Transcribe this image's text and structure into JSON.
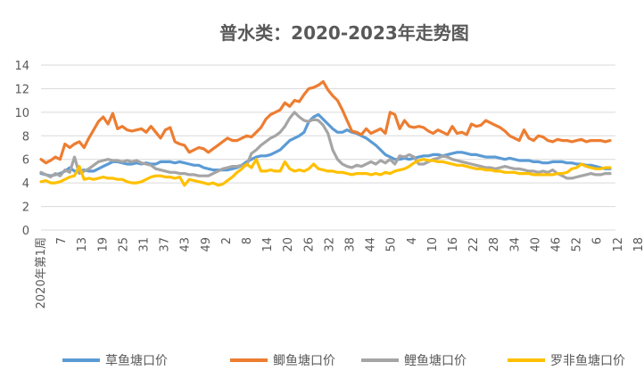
{
  "chart_data": {
    "type": "line",
    "title": "普水类：2020-2023年走势图",
    "xlabel": "",
    "ylabel": "",
    "ylim": [
      0,
      14
    ],
    "yticks": [
      0,
      2,
      4,
      6,
      8,
      10,
      12,
      14
    ],
    "grid": true,
    "legend_position": "bottom",
    "x_tick_labels": [
      "2020年第1周",
      "7",
      "13",
      "19",
      "25",
      "31",
      "37",
      "43",
      "49",
      "2",
      "8",
      "14",
      "20",
      "26",
      "32",
      "38",
      "44",
      "50",
      "4",
      "10",
      "16",
      "22",
      "28",
      "34",
      "40",
      "46",
      "52",
      "6",
      "12",
      "18"
    ],
    "series": [
      {
        "name": "草鱼塘口价",
        "color": "#5b9bd5",
        "values": [
          4.8,
          4.7,
          4.6,
          4.7,
          4.8,
          5.0,
          5.3,
          5.0,
          5.0,
          5.1,
          5.0,
          5.0,
          5.2,
          5.4,
          5.6,
          5.8,
          5.8,
          5.7,
          5.6,
          5.6,
          5.7,
          5.6,
          5.7,
          5.6,
          5.6,
          5.8,
          5.8,
          5.8,
          5.7,
          5.8,
          5.7,
          5.6,
          5.5,
          5.5,
          5.3,
          5.2,
          5.1,
          5.1,
          5.1,
          5.1,
          5.2,
          5.3,
          5.5,
          5.8,
          6.0,
          6.2,
          6.3,
          6.3,
          6.4,
          6.6,
          6.8,
          7.2,
          7.6,
          7.8,
          8.0,
          8.3,
          9.2,
          9.6,
          9.8,
          9.4,
          9.0,
          8.6,
          8.3,
          8.3,
          8.5,
          8.3,
          8.2,
          8.0,
          7.8,
          7.5,
          7.2,
          6.8,
          6.4,
          6.2,
          6.0,
          6.0,
          6.1,
          6.0,
          6.1,
          6.2,
          6.3,
          6.3,
          6.4,
          6.4,
          6.3,
          6.4,
          6.5,
          6.6,
          6.6,
          6.5,
          6.4,
          6.4,
          6.3,
          6.2,
          6.2,
          6.2,
          6.1,
          6.0,
          6.1,
          6.0,
          5.9,
          5.9,
          5.9,
          5.8,
          5.8,
          5.7,
          5.7,
          5.8,
          5.8,
          5.8,
          5.7,
          5.7,
          5.6,
          5.6,
          5.5,
          5.5,
          5.4,
          5.3,
          5.2,
          5.2
        ]
      },
      {
        "name": "鲫鱼塘口价",
        "color": "#ed7d31",
        "values": [
          6.0,
          5.7,
          5.9,
          6.2,
          6.0,
          7.3,
          7.0,
          7.3,
          7.5,
          7.0,
          7.8,
          8.5,
          9.2,
          9.6,
          9.0,
          9.9,
          8.6,
          8.8,
          8.5,
          8.4,
          8.5,
          8.6,
          8.3,
          8.8,
          8.3,
          7.8,
          8.5,
          8.7,
          7.5,
          7.3,
          7.2,
          6.6,
          6.8,
          7.0,
          6.9,
          6.6,
          6.9,
          7.2,
          7.5,
          7.8,
          7.6,
          7.6,
          7.8,
          8.0,
          7.9,
          8.3,
          8.7,
          9.4,
          9.8,
          10.0,
          10.2,
          10.8,
          10.5,
          11.0,
          10.9,
          11.5,
          12.0,
          12.1,
          12.3,
          12.6,
          11.9,
          11.4,
          11.0,
          10.2,
          9.3,
          8.4,
          8.3,
          8.1,
          8.6,
          8.2,
          8.4,
          8.6,
          8.2,
          10.0,
          9.8,
          8.6,
          9.3,
          8.8,
          8.7,
          8.8,
          8.7,
          8.4,
          8.2,
          8.5,
          8.3,
          8.1,
          8.8,
          8.2,
          8.3,
          8.1,
          9.0,
          8.8,
          8.9,
          9.3,
          9.1,
          8.9,
          8.7,
          8.4,
          8.0,
          7.8,
          7.6,
          8.5,
          7.8,
          7.6,
          8.0,
          7.9,
          7.6,
          7.5,
          7.7,
          7.6,
          7.6,
          7.5,
          7.6,
          7.7,
          7.5,
          7.6,
          7.6,
          7.6,
          7.5,
          7.6
        ]
      },
      {
        "name": "鲤鱼塘口价",
        "color": "#a5a5a5",
        "values": [
          4.9,
          4.7,
          4.5,
          4.8,
          4.6,
          5.1,
          4.9,
          6.2,
          4.8,
          5.0,
          5.2,
          5.5,
          5.8,
          5.9,
          6.0,
          5.9,
          5.9,
          5.8,
          5.9,
          5.8,
          5.9,
          5.7,
          5.6,
          5.5,
          5.2,
          5.1,
          5.0,
          4.9,
          4.9,
          4.8,
          4.8,
          4.7,
          4.7,
          4.6,
          4.6,
          4.6,
          4.8,
          5.0,
          5.2,
          5.3,
          5.4,
          5.4,
          5.5,
          5.5,
          6.5,
          6.8,
          7.2,
          7.5,
          7.8,
          8.0,
          8.3,
          8.8,
          9.5,
          10.0,
          9.6,
          9.3,
          9.2,
          9.4,
          9.3,
          8.9,
          8.2,
          6.8,
          6.0,
          5.6,
          5.4,
          5.3,
          5.5,
          5.4,
          5.6,
          5.8,
          5.6,
          5.9,
          5.7,
          6.0,
          5.6,
          6.3,
          6.2,
          6.4,
          6.2,
          5.6,
          5.6,
          5.8,
          6.0,
          6.1,
          6.3,
          6.2,
          6.0,
          5.9,
          5.8,
          5.7,
          5.6,
          5.5,
          5.4,
          5.3,
          5.3,
          5.2,
          5.3,
          5.4,
          5.3,
          5.2,
          5.2,
          5.1,
          5.0,
          5.0,
          4.9,
          5.0,
          4.9,
          5.1,
          4.8,
          4.6,
          4.4,
          4.4,
          4.5,
          4.6,
          4.7,
          4.8,
          4.7,
          4.7,
          4.8,
          4.8
        ]
      },
      {
        "name": "罗非鱼塘口价",
        "color": "#ffc000",
        "values": [
          4.1,
          4.2,
          4.0,
          4.0,
          4.1,
          4.3,
          4.5,
          4.6,
          5.4,
          4.3,
          4.4,
          4.3,
          4.4,
          4.5,
          4.4,
          4.4,
          4.3,
          4.3,
          4.1,
          4.0,
          4.0,
          4.1,
          4.3,
          4.5,
          4.6,
          4.6,
          4.5,
          4.5,
          4.4,
          4.5,
          3.8,
          4.3,
          4.2,
          4.1,
          4.0,
          3.9,
          4.0,
          3.8,
          3.9,
          4.2,
          4.5,
          4.9,
          5.2,
          5.6,
          5.3,
          6.0,
          5.0,
          5.0,
          5.1,
          5.0,
          5.0,
          5.8,
          5.2,
          5.0,
          5.1,
          5.0,
          5.2,
          5.6,
          5.2,
          5.1,
          5.0,
          5.0,
          4.9,
          4.9,
          4.8,
          4.7,
          4.8,
          4.8,
          4.8,
          4.7,
          4.8,
          4.7,
          4.9,
          4.8,
          5.0,
          5.1,
          5.2,
          5.4,
          5.7,
          5.9,
          6.0,
          5.9,
          5.9,
          5.8,
          5.8,
          5.7,
          5.6,
          5.5,
          5.5,
          5.4,
          5.3,
          5.2,
          5.2,
          5.1,
          5.1,
          5.0,
          5.0,
          4.9,
          4.9,
          4.9,
          4.8,
          4.8,
          4.8,
          4.7,
          4.7,
          4.7,
          4.7,
          4.7,
          4.8,
          4.8,
          4.9,
          5.2,
          5.3,
          5.6,
          5.4,
          5.3,
          5.2,
          5.2,
          5.3,
          5.3
        ]
      }
    ]
  }
}
